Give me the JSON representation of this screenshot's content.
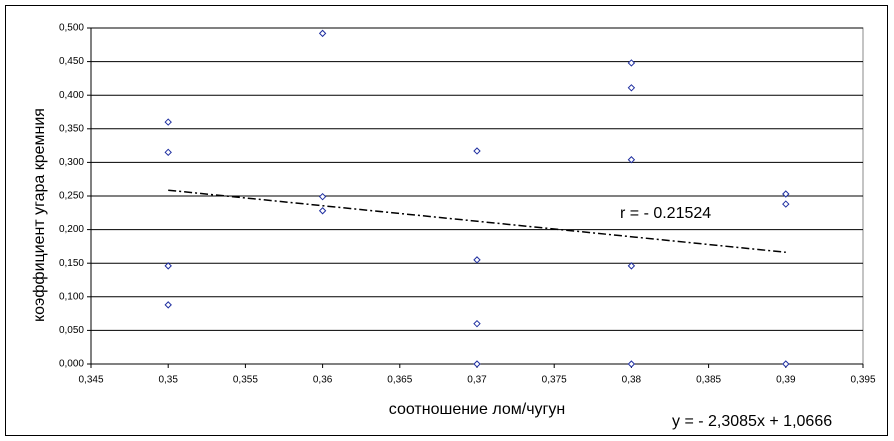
{
  "chart_data": {
    "type": "scatter",
    "x_label": "соотношение лом/чугун",
    "y_label": "коэффициент угара кремния",
    "annotation": "r = - 0.21524",
    "equation": "y = - 2,3085x + 1,0666",
    "trend": {
      "slope": -2.3085,
      "intercept": 1.0666
    },
    "grid": true,
    "color": "#1f2fa0",
    "x": [
      0.35,
      0.35,
      0.35,
      0.35,
      0.36,
      0.36,
      0.36,
      0.37,
      0.37,
      0.37,
      0.37,
      0.38,
      0.38,
      0.38,
      0.38,
      0.38,
      0.39,
      0.39,
      0.39
    ],
    "values": [
      0.36,
      0.315,
      0.146,
      0.088,
      0.492,
      0.249,
      0.228,
      0.317,
      0.155,
      0.06,
      0.0,
      0.448,
      0.411,
      0.304,
      0.146,
      0.0,
      0.253,
      0.238,
      0.0
    ],
    "xlim": [
      0.345,
      0.395
    ],
    "xticks": [
      {
        "value": 0.345,
        "label": "0,345"
      },
      {
        "value": 0.35,
        "label": "0,35"
      },
      {
        "value": 0.355,
        "label": "0,355"
      },
      {
        "value": 0.36,
        "label": "0,36"
      },
      {
        "value": 0.365,
        "label": "0,365"
      },
      {
        "value": 0.37,
        "label": "0,37"
      },
      {
        "value": 0.375,
        "label": "0,375"
      },
      {
        "value": 0.38,
        "label": "0,38"
      },
      {
        "value": 0.385,
        "label": "0,385"
      },
      {
        "value": 0.39,
        "label": "0,39"
      },
      {
        "value": 0.395,
        "label": "0,395"
      }
    ],
    "ylim": [
      0,
      0.5
    ],
    "yticks": [
      {
        "value": 0,
        "label": "0,000"
      },
      {
        "value": 0.05,
        "label": "0,050"
      },
      {
        "value": 0.1,
        "label": "0,100"
      },
      {
        "value": 0.15,
        "label": "0,150"
      },
      {
        "value": 0.2,
        "label": "0,200"
      },
      {
        "value": 0.25,
        "label": "0,250"
      },
      {
        "value": 0.3,
        "label": "0,300"
      },
      {
        "value": 0.35,
        "label": "0,350"
      },
      {
        "value": 0.4,
        "label": "0,400"
      },
      {
        "value": 0.45,
        "label": "0,450"
      },
      {
        "value": 0.5,
        "label": "0,500"
      }
    ]
  }
}
